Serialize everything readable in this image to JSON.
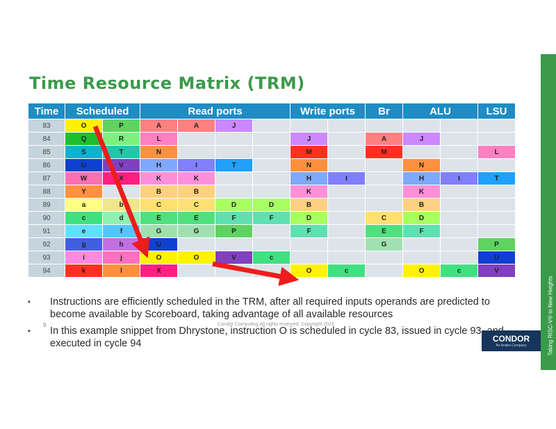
{
  "title": "Time Resource Matrix (TRM)",
  "table": {
    "headers": [
      {
        "label": "Time",
        "span": 1
      },
      {
        "label": "Scheduled",
        "span": 2
      },
      {
        "label": "Read ports",
        "span": 4
      },
      {
        "label": "Write ports",
        "span": 2
      },
      {
        "label": "Br",
        "span": 1
      },
      {
        "label": "ALU",
        "span": 2
      },
      {
        "label": "LSU",
        "span": 1
      }
    ],
    "rows": [
      {
        "time": "83",
        "cells": [
          [
            "O",
            "#fff200"
          ],
          [
            "P",
            "#5fd35f"
          ],
          [
            "A",
            "#ff8080"
          ],
          [
            "A",
            "#ff8080"
          ],
          [
            "J",
            "#cc88ff"
          ],
          [
            "",
            ""
          ],
          [
            "",
            ""
          ],
          [
            "",
            ""
          ],
          [
            "",
            ""
          ],
          [
            "",
            ""
          ],
          [
            "",
            ""
          ],
          [
            "",
            ""
          ]
        ]
      },
      {
        "time": "84",
        "cells": [
          [
            "Q",
            "#1fbf2e"
          ],
          [
            "R",
            "#7ff07f"
          ],
          [
            "L",
            "#ff80c0"
          ],
          [
            "",
            ""
          ],
          [
            "",
            ""
          ],
          [
            "",
            ""
          ],
          [
            "J",
            "#cc88ff"
          ],
          [
            "",
            ""
          ],
          [
            "A",
            "#ff8080"
          ],
          [
            "J",
            "#cc88ff"
          ],
          [
            "",
            ""
          ],
          [
            "",
            ""
          ]
        ]
      },
      {
        "time": "85",
        "cells": [
          [
            "S",
            "#14b0c8"
          ],
          [
            "T",
            "#20c8a8"
          ],
          [
            "N",
            "#ff9040"
          ],
          [
            "",
            ""
          ],
          [
            "",
            ""
          ],
          [
            "",
            ""
          ],
          [
            "M",
            "#ff3020"
          ],
          [
            "",
            ""
          ],
          [
            "M",
            "#ff3020"
          ],
          [
            "",
            ""
          ],
          [
            "",
            ""
          ],
          [
            "L",
            "#ff80c0"
          ]
        ]
      },
      {
        "time": "86",
        "cells": [
          [
            "U",
            "#1040d0"
          ],
          [
            "V",
            "#8040c0"
          ],
          [
            "H",
            "#7fa8ff"
          ],
          [
            "I",
            "#8080ff"
          ],
          [
            "T",
            "#20a0ff"
          ],
          [
            "",
            ""
          ],
          [
            "N",
            "#ff9040"
          ],
          [
            "",
            ""
          ],
          [
            "",
            ""
          ],
          [
            "N",
            "#ff9040"
          ],
          [
            "",
            ""
          ],
          [
            "",
            ""
          ]
        ]
      },
      {
        "time": "87",
        "cells": [
          [
            "W",
            "#ff70b0"
          ],
          [
            "X",
            "#ff2080"
          ],
          [
            "K",
            "#ff90d8"
          ],
          [
            "K",
            "#ff90d8"
          ],
          [
            "",
            ""
          ],
          [
            "",
            ""
          ],
          [
            "H",
            "#7fa8ff"
          ],
          [
            "I",
            "#8080ff"
          ],
          [
            "",
            ""
          ],
          [
            "H",
            "#7fa8ff"
          ],
          [
            "I",
            "#8080ff"
          ],
          [
            "T",
            "#20a0ff"
          ]
        ]
      },
      {
        "time": "88",
        "cells": [
          [
            "Y",
            "#ff9040"
          ],
          [
            "",
            ""
          ],
          [
            "B",
            "#ffd080"
          ],
          [
            "B",
            "#ffd080"
          ],
          [
            "",
            ""
          ],
          [
            "",
            ""
          ],
          [
            "K",
            "#ff90d8"
          ],
          [
            "",
            ""
          ],
          [
            "",
            ""
          ],
          [
            "K",
            "#ff90d8"
          ],
          [
            "",
            ""
          ],
          [
            "",
            ""
          ]
        ]
      },
      {
        "time": "89",
        "cells": [
          [
            "a",
            "#ffff80"
          ],
          [
            "b",
            "#f0e68c"
          ],
          [
            "C",
            "#ffe070"
          ],
          [
            "C",
            "#ffe070"
          ],
          [
            "D",
            "#a8ff60"
          ],
          [
            "D",
            "#a8ff60"
          ],
          [
            "B",
            "#ffd080"
          ],
          [
            "",
            ""
          ],
          [
            "",
            ""
          ],
          [
            "B",
            "#ffd080"
          ],
          [
            "",
            ""
          ],
          [
            "",
            ""
          ]
        ]
      },
      {
        "time": "90",
        "cells": [
          [
            "c",
            "#40e080"
          ],
          [
            "d",
            "#90f0b0"
          ],
          [
            "E",
            "#50e080"
          ],
          [
            "E",
            "#50e080"
          ],
          [
            "F",
            "#60e0b0"
          ],
          [
            "F",
            "#60e0b0"
          ],
          [
            "D",
            "#a8ff60"
          ],
          [
            "",
            ""
          ],
          [
            "C",
            "#ffe070"
          ],
          [
            "D",
            "#a8ff60"
          ],
          [
            "",
            ""
          ],
          [
            "",
            ""
          ]
        ]
      },
      {
        "time": "91",
        "cells": [
          [
            "e",
            "#60e0ff"
          ],
          [
            "f",
            "#50c8ff"
          ],
          [
            "G",
            "#a0e0b0"
          ],
          [
            "G",
            "#a0e0b0"
          ],
          [
            "P",
            "#5fd35f"
          ],
          [
            "",
            ""
          ],
          [
            "F",
            "#60e0b0"
          ],
          [
            "",
            ""
          ],
          [
            "E",
            "#50e080"
          ],
          [
            "F",
            "#60e0b0"
          ],
          [
            "",
            ""
          ],
          [
            "",
            ""
          ]
        ]
      },
      {
        "time": "92",
        "cells": [
          [
            "g",
            "#4060e0"
          ],
          [
            "h",
            "#c070e0"
          ],
          [
            "U",
            "#1040d0"
          ],
          [
            "",
            ""
          ],
          [
            "",
            ""
          ],
          [
            "",
            ""
          ],
          [
            "",
            ""
          ],
          [
            "",
            ""
          ],
          [
            "G",
            "#a0e0b0"
          ],
          [
            "",
            ""
          ],
          [
            "",
            ""
          ],
          [
            "P",
            "#5fd35f"
          ]
        ]
      },
      {
        "time": "93",
        "cells": [
          [
            "i",
            "#ff88e0"
          ],
          [
            "j",
            "#ff70c0"
          ],
          [
            "O",
            "#fff200"
          ],
          [
            "O",
            "#fff200"
          ],
          [
            "V",
            "#8040c0"
          ],
          [
            "c",
            "#40e080"
          ],
          [
            "",
            ""
          ],
          [
            "",
            ""
          ],
          [
            "",
            ""
          ],
          [
            "",
            ""
          ],
          [
            "",
            ""
          ],
          [
            "U",
            "#1040d0"
          ]
        ]
      },
      {
        "time": "94",
        "cells": [
          [
            "k",
            "#ff3020"
          ],
          [
            "l",
            "#ff9040"
          ],
          [
            "X",
            "#ff2080"
          ],
          [
            "",
            ""
          ],
          [
            "",
            ""
          ],
          [
            "",
            ""
          ],
          [
            "O",
            "#fff200"
          ],
          [
            "c",
            "#40e080"
          ],
          [
            "",
            ""
          ],
          [
            "O",
            "#fff200"
          ],
          [
            "c",
            "#40e080"
          ],
          [
            "V",
            "#8040c0"
          ]
        ]
      }
    ]
  },
  "bullets": [
    "Instructions are efficiently scheduled in the TRM, after all required inputs operands are predicted to become available by Scoreboard, taking advantage of all available resources",
    "In this example snippet from Dhrystone, instruction O is scheduled in cycle 83, issued in cycle 93, and executed in cycle 94"
  ],
  "bullet_symbol": "▪",
  "page_number": "9",
  "footer_text": "Condor Computing  All rights reserved. Copyright 2023",
  "side_text": "Taking RISC-V® to New Heights",
  "logo": {
    "name": "CONDOR",
    "tagline": "An Andes Company"
  },
  "colors": {
    "header_bg": "#1f8cc4",
    "title": "#3b9a4a",
    "arrow": "#ee1c1c",
    "sidebar": "#3a9a4a"
  }
}
